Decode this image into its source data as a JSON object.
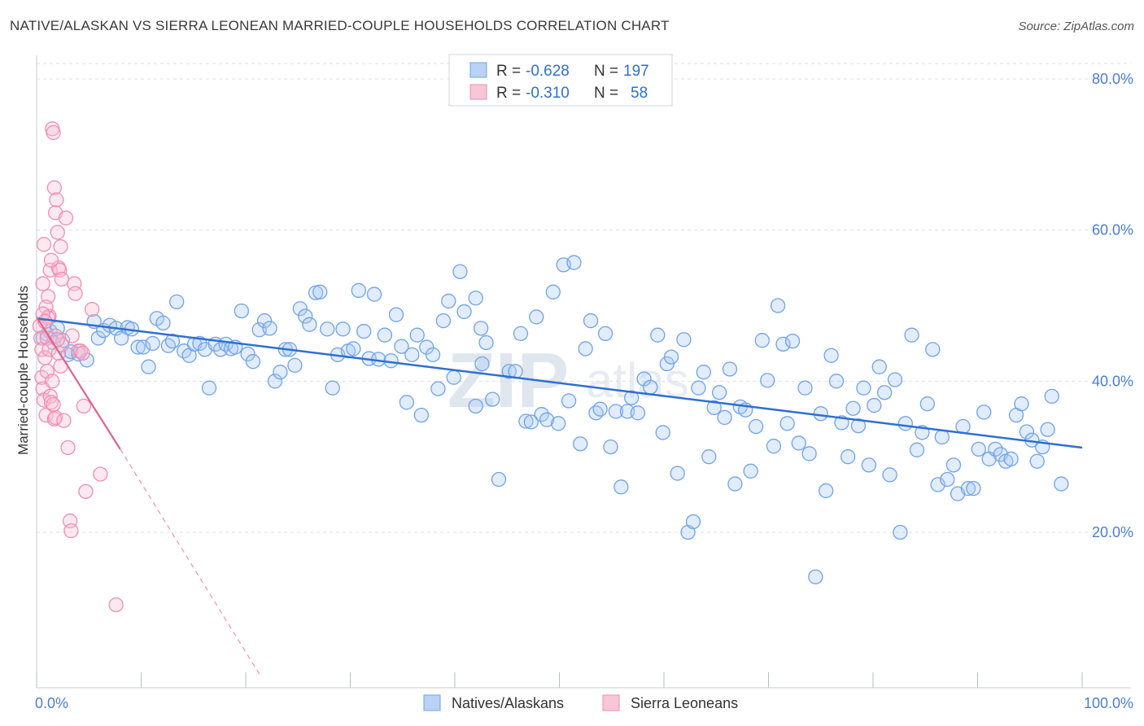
{
  "title": "NATIVE/ALASKAN VS SIERRA LEONEAN MARRIED-COUPLE HOUSEHOLDS CORRELATION CHART",
  "source": "Source: ZipAtlas.com",
  "watermark": {
    "zip": "ZIP",
    "atlas": "atlas"
  },
  "colors": {
    "blue": "#6fa3e8",
    "blue_fill": "rgba(170,200,245,0.35)",
    "blue_line": "#2f6fd0",
    "pink": "#ee8fb0",
    "pink_fill": "rgba(248,190,210,0.35)",
    "pink_line": "#e0628f"
  },
  "chart_data": {
    "type": "scatter",
    "title": "NATIVE/ALASKAN VS SIERRA LEONEAN MARRIED-COUPLE HOUSEHOLDS CORRELATION CHART",
    "xlabel": "",
    "ylabel": "Married-couple Households",
    "xlim": [
      0,
      100
    ],
    "ylim": [
      0,
      80
    ],
    "x_tick_labels": [
      "0.0%",
      "100.0%"
    ],
    "y_tick_labels": [
      "20.0%",
      "40.0%",
      "60.0%",
      "80.0%"
    ],
    "y_ticks": [
      20,
      40,
      60,
      80
    ],
    "grid": true,
    "legend": {
      "placement": "top-center",
      "rows": [
        {
          "r_label": "R = ",
          "r_value": "-0.628",
          "n_label": "N = ",
          "n_value": "197"
        },
        {
          "r_label": "R = ",
          "r_value": "-0.310",
          "n_label": "N = ",
          "n_value": "58"
        }
      ]
    },
    "series": [
      {
        "name": "Natives/Alaskans",
        "trend": {
          "x": [
            0,
            100
          ],
          "y": [
            48.3,
            31.2
          ]
        },
        "points": [
          [
            0.6,
            45.7
          ],
          [
            1.0,
            46.2
          ],
          [
            1.3,
            46.6
          ],
          [
            1.6,
            45.1
          ],
          [
            2.0,
            47.0
          ],
          [
            2.5,
            45.4
          ],
          [
            3.0,
            43.5
          ],
          [
            3.3,
            43.9
          ],
          [
            4.0,
            43.6
          ],
          [
            4.8,
            42.8
          ],
          [
            5.5,
            47.9
          ],
          [
            5.9,
            45.7
          ],
          [
            6.4,
            46.7
          ],
          [
            7.0,
            47.4
          ],
          [
            7.6,
            47.0
          ],
          [
            8.1,
            45.7
          ],
          [
            8.7,
            47.1
          ],
          [
            9.1,
            46.9
          ],
          [
            9.7,
            44.5
          ],
          [
            10.2,
            44.5
          ],
          [
            10.7,
            41.9
          ],
          [
            11.1,
            45.0
          ],
          [
            11.5,
            48.3
          ],
          [
            12.1,
            47.7
          ],
          [
            12.6,
            44.7
          ],
          [
            13.0,
            45.3
          ],
          [
            13.4,
            50.5
          ],
          [
            14.1,
            44.0
          ],
          [
            14.6,
            43.4
          ],
          [
            15.1,
            44.9
          ],
          [
            15.6,
            45.0
          ],
          [
            16.1,
            44.2
          ],
          [
            16.5,
            39.1
          ],
          [
            17.1,
            44.9
          ],
          [
            17.6,
            44.2
          ],
          [
            18.1,
            44.9
          ],
          [
            18.6,
            44.3
          ],
          [
            19.0,
            44.5
          ],
          [
            19.6,
            49.3
          ],
          [
            20.2,
            43.6
          ],
          [
            20.7,
            42.6
          ],
          [
            21.3,
            46.8
          ],
          [
            21.8,
            48.0
          ],
          [
            22.3,
            47.0
          ],
          [
            22.8,
            40.0
          ],
          [
            23.3,
            41.2
          ],
          [
            23.8,
            44.2
          ],
          [
            24.2,
            44.2
          ],
          [
            24.7,
            42.1
          ],
          [
            25.2,
            49.6
          ],
          [
            25.7,
            48.6
          ],
          [
            26.1,
            47.5
          ],
          [
            26.7,
            51.7
          ],
          [
            27.1,
            51.8
          ],
          [
            27.8,
            46.9
          ],
          [
            28.3,
            39.1
          ],
          [
            28.8,
            43.5
          ],
          [
            29.3,
            46.9
          ],
          [
            29.8,
            44.0
          ],
          [
            30.3,
            44.3
          ],
          [
            30.8,
            52.0
          ],
          [
            31.3,
            46.6
          ],
          [
            31.8,
            43.0
          ],
          [
            32.3,
            51.5
          ],
          [
            32.7,
            42.9
          ],
          [
            33.3,
            46.1
          ],
          [
            33.9,
            42.7
          ],
          [
            34.4,
            48.8
          ],
          [
            34.9,
            44.6
          ],
          [
            35.4,
            37.2
          ],
          [
            35.9,
            43.5
          ],
          [
            36.4,
            46.1
          ],
          [
            36.8,
            35.5
          ],
          [
            37.3,
            44.5
          ],
          [
            37.9,
            43.5
          ],
          [
            38.4,
            39.0
          ],
          [
            38.9,
            48.0
          ],
          [
            39.4,
            50.6
          ],
          [
            39.9,
            40.5
          ],
          [
            40.5,
            54.5
          ],
          [
            40.9,
            49.2
          ],
          [
            42.0,
            36.7
          ],
          [
            42.5,
            47.0
          ],
          [
            42.0,
            51.0
          ],
          [
            42.6,
            42.3
          ],
          [
            43.0,
            45.1
          ],
          [
            43.6,
            37.6
          ],
          [
            44.2,
            27.0
          ],
          [
            45.2,
            41.3
          ],
          [
            45.8,
            41.3
          ],
          [
            46.3,
            46.3
          ],
          [
            46.8,
            34.7
          ],
          [
            47.3,
            34.6
          ],
          [
            47.8,
            48.5
          ],
          [
            48.3,
            35.6
          ],
          [
            48.8,
            34.9
          ],
          [
            49.4,
            51.8
          ],
          [
            49.9,
            34.4
          ],
          [
            50.4,
            55.4
          ],
          [
            50.9,
            37.4
          ],
          [
            51.4,
            55.7
          ],
          [
            52.0,
            31.7
          ],
          [
            52.5,
            44.3
          ],
          [
            53.0,
            48.0
          ],
          [
            53.5,
            35.8
          ],
          [
            53.9,
            36.3
          ],
          [
            54.4,
            46.3
          ],
          [
            54.9,
            31.3
          ],
          [
            55.4,
            36.0
          ],
          [
            55.9,
            26.0
          ],
          [
            56.5,
            36.0
          ],
          [
            56.9,
            37.8
          ],
          [
            57.5,
            35.8
          ],
          [
            58.1,
            40.3
          ],
          [
            58.7,
            39.2
          ],
          [
            59.4,
            46.1
          ],
          [
            59.9,
            33.2
          ],
          [
            60.3,
            42.3
          ],
          [
            60.7,
            43.2
          ],
          [
            61.3,
            27.8
          ],
          [
            61.9,
            45.5
          ],
          [
            62.3,
            20.0
          ],
          [
            62.8,
            21.4
          ],
          [
            63.3,
            39.1
          ],
          [
            63.8,
            41.2
          ],
          [
            64.3,
            30.0
          ],
          [
            64.8,
            36.5
          ],
          [
            65.3,
            38.5
          ],
          [
            65.8,
            35.2
          ],
          [
            66.3,
            41.6
          ],
          [
            66.8,
            26.4
          ],
          [
            67.3,
            36.6
          ],
          [
            67.8,
            36.2
          ],
          [
            68.3,
            28.1
          ],
          [
            68.8,
            34.0
          ],
          [
            69.4,
            45.4
          ],
          [
            69.9,
            40.1
          ],
          [
            70.5,
            31.4
          ],
          [
            70.9,
            50.0
          ],
          [
            71.4,
            44.9
          ],
          [
            71.8,
            34.4
          ],
          [
            72.3,
            45.3
          ],
          [
            72.9,
            31.8
          ],
          [
            73.5,
            39.1
          ],
          [
            73.9,
            30.4
          ],
          [
            74.5,
            14.1
          ],
          [
            75.0,
            35.7
          ],
          [
            75.5,
            25.5
          ],
          [
            76.0,
            43.4
          ],
          [
            76.5,
            40.0
          ],
          [
            77.0,
            34.5
          ],
          [
            77.6,
            30.0
          ],
          [
            78.1,
            36.4
          ],
          [
            78.6,
            34.1
          ],
          [
            79.1,
            39.1
          ],
          [
            79.6,
            28.9
          ],
          [
            80.1,
            36.8
          ],
          [
            80.6,
            41.9
          ],
          [
            81.1,
            38.5
          ],
          [
            81.6,
            27.6
          ],
          [
            82.1,
            40.2
          ],
          [
            82.6,
            20.0
          ],
          [
            83.1,
            34.4
          ],
          [
            83.7,
            46.1
          ],
          [
            84.2,
            30.9
          ],
          [
            84.7,
            33.2
          ],
          [
            85.2,
            37.0
          ],
          [
            85.7,
            44.2
          ],
          [
            86.2,
            26.3
          ],
          [
            86.6,
            32.6
          ],
          [
            87.1,
            27.0
          ],
          [
            87.7,
            28.9
          ],
          [
            88.1,
            25.1
          ],
          [
            88.6,
            34.0
          ],
          [
            89.1,
            25.8
          ],
          [
            89.6,
            25.8
          ],
          [
            90.1,
            31.0
          ],
          [
            90.6,
            35.9
          ],
          [
            91.1,
            29.7
          ],
          [
            91.7,
            31.0
          ],
          [
            92.2,
            30.3
          ],
          [
            92.7,
            29.4
          ],
          [
            93.2,
            29.7
          ],
          [
            93.7,
            35.5
          ],
          [
            94.2,
            37.0
          ],
          [
            94.7,
            33.3
          ],
          [
            95.2,
            32.2
          ],
          [
            95.7,
            29.4
          ],
          [
            96.2,
            31.3
          ],
          [
            96.7,
            33.6
          ],
          [
            97.1,
            38.0
          ],
          [
            98.0,
            26.4
          ]
        ]
      },
      {
        "name": "Sierra Leoneans",
        "trend": {
          "x": [
            0,
            8.0
          ],
          "y": [
            48.5,
            31.0
          ]
        },
        "trend_dashed": {
          "x": [
            8.0,
            21.5
          ],
          "y": [
            31.0,
            0.8
          ]
        },
        "points": [
          [
            0.3,
            47.3
          ],
          [
            0.4,
            45.7
          ],
          [
            0.5,
            44.2
          ],
          [
            0.6,
            52.9
          ],
          [
            0.7,
            58.1
          ],
          [
            0.8,
            43.1
          ],
          [
            0.5,
            40.5
          ],
          [
            0.6,
            39.0
          ],
          [
            0.7,
            37.5
          ],
          [
            0.9,
            35.5
          ],
          [
            1.0,
            41.3
          ],
          [
            1.1,
            51.2
          ],
          [
            1.2,
            48.6
          ],
          [
            1.3,
            54.7
          ],
          [
            1.0,
            45.7
          ],
          [
            1.2,
            44.2
          ],
          [
            1.3,
            38.0
          ],
          [
            1.4,
            37.2
          ],
          [
            1.5,
            40.0
          ],
          [
            1.6,
            36.9
          ],
          [
            1.7,
            35.0
          ],
          [
            1.8,
            35.2
          ],
          [
            1.5,
            73.4
          ],
          [
            1.6,
            72.9
          ],
          [
            1.7,
            65.6
          ],
          [
            1.8,
            62.3
          ],
          [
            1.9,
            64.0
          ],
          [
            2.0,
            59.7
          ],
          [
            2.1,
            55.0
          ],
          [
            2.2,
            54.7
          ],
          [
            2.3,
            57.8
          ],
          [
            2.4,
            53.5
          ],
          [
            2.1,
            43.7
          ],
          [
            2.3,
            42.0
          ],
          [
            2.4,
            44.8
          ],
          [
            2.6,
            34.8
          ],
          [
            2.8,
            61.6
          ],
          [
            3.0,
            31.2
          ],
          [
            3.2,
            21.5
          ],
          [
            3.3,
            20.2
          ],
          [
            3.6,
            52.9
          ],
          [
            3.7,
            51.6
          ],
          [
            4.5,
            36.7
          ],
          [
            4.7,
            25.4
          ],
          [
            4.0,
            44.0
          ],
          [
            4.2,
            44.0
          ],
          [
            4.4,
            43.7
          ],
          [
            5.3,
            49.5
          ],
          [
            6.1,
            27.7
          ],
          [
            7.6,
            10.4
          ],
          [
            0.9,
            49.8
          ],
          [
            1.1,
            48.4
          ],
          [
            1.8,
            46.0
          ],
          [
            2.0,
            45.5
          ],
          [
            0.6,
            48.9
          ],
          [
            0.8,
            47.9
          ],
          [
            1.4,
            56.0
          ],
          [
            3.4,
            46.0
          ]
        ]
      }
    ]
  },
  "bottom_legend": [
    {
      "label": "Natives/Alaskans"
    },
    {
      "label": "Sierra Leoneans"
    }
  ]
}
